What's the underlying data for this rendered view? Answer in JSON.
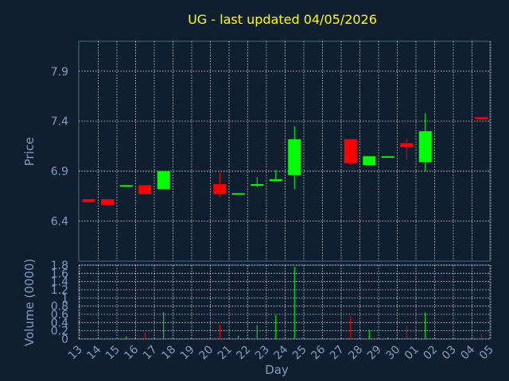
{
  "chart_data": {
    "type": "candlestick",
    "title": "UG - last updated 04/05/2026",
    "xlabel": "Day",
    "price_ylabel": "Price",
    "volume_ylabel": "Volume (0000)",
    "x_ticks": [
      "13",
      "14",
      "15",
      "16",
      "17",
      "18",
      "19",
      "20",
      "21",
      "22",
      "23",
      "24",
      "25",
      "26",
      "27",
      "28",
      "29",
      "30",
      "01",
      "02",
      "03",
      "04",
      "05"
    ],
    "price_ticks": [
      "6.4",
      "6.9",
      "7.4",
      "7.9"
    ],
    "price_ylim": [
      6.0,
      8.2
    ],
    "volume_ticks": [
      "0",
      "0.2",
      "0.4",
      "0.6",
      "0.8",
      "1",
      "1.2",
      "1.4",
      "1.6",
      "1.8"
    ],
    "volume_ylim": [
      0,
      1.8
    ],
    "grid": true,
    "colors": {
      "background": "#0f1f30",
      "title": "#ffff00",
      "axis_text": "#7f9cc0",
      "up": "#00ff00",
      "down": "#ff0000",
      "grid": "#ffffff"
    },
    "candles": [
      {
        "day": "13",
        "open": 6.62,
        "high": 6.62,
        "low": 6.59,
        "close": 6.59,
        "volume": 0.02
      },
      {
        "day": "14",
        "open": 6.62,
        "high": 6.62,
        "low": 6.56,
        "close": 6.56,
        "volume": 0.05
      },
      {
        "day": "15",
        "open": 6.75,
        "high": 6.76,
        "low": 6.75,
        "close": 6.76,
        "volume": 0.06
      },
      {
        "day": "16",
        "open": 6.76,
        "high": 6.76,
        "low": 6.67,
        "close": 6.67,
        "volume": 0.15
      },
      {
        "day": "17",
        "open": 6.72,
        "high": 6.9,
        "low": 6.72,
        "close": 6.9,
        "volume": 0.65
      },
      {
        "day": "20",
        "open": 6.77,
        "high": 6.89,
        "low": 6.64,
        "close": 6.67,
        "volume": 0.35
      },
      {
        "day": "21",
        "open": 6.67,
        "high": 6.68,
        "low": 6.67,
        "close": 6.68,
        "volume": 0.08
      },
      {
        "day": "22",
        "open": 6.76,
        "high": 6.84,
        "low": 6.74,
        "close": 6.77,
        "volume": 0.33
      },
      {
        "day": "23",
        "open": 6.8,
        "high": 6.91,
        "low": 6.8,
        "close": 6.82,
        "volume": 0.58
      },
      {
        "day": "24",
        "open": 6.86,
        "high": 7.35,
        "low": 6.72,
        "close": 7.22,
        "volume": 1.75
      },
      {
        "day": "27",
        "open": 7.22,
        "high": 7.22,
        "low": 6.96,
        "close": 6.98,
        "volume": 0.55
      },
      {
        "day": "28",
        "open": 6.96,
        "high": 7.05,
        "low": 6.96,
        "close": 7.05,
        "volume": 0.22
      },
      {
        "day": "29",
        "open": 7.04,
        "high": 7.05,
        "low": 7.04,
        "close": 7.05,
        "volume": 0.04
      },
      {
        "day": "30",
        "open": 7.18,
        "high": 7.23,
        "low": 7.02,
        "close": 7.14,
        "volume": 0.32
      },
      {
        "day": "01",
        "open": 6.99,
        "high": 7.48,
        "low": 6.9,
        "close": 7.3,
        "volume": 0.64
      },
      {
        "day": "04",
        "open": 7.44,
        "high": 7.44,
        "low": 7.42,
        "close": 7.42,
        "volume": 0.12
      }
    ]
  }
}
